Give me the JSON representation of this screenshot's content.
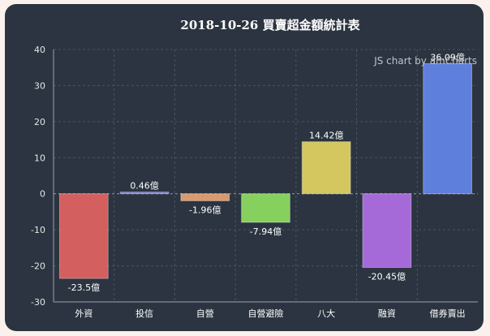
{
  "chart_data": {
    "type": "bar",
    "title": "2018-10-26 買賣超金額統計表",
    "categories": [
      "外資",
      "投信",
      "自營",
      "自營避險",
      "八大",
      "融資",
      "借券賣出"
    ],
    "values": [
      -23.5,
      0.46,
      -1.96,
      -7.94,
      14.42,
      -20.45,
      36.09
    ],
    "labels": [
      "-23.5億",
      "0.46億",
      "-1.96億",
      "-7.94億",
      "14.42億",
      "-20.45億",
      "36.09億"
    ],
    "colors": [
      "#d35f5f",
      "#7f82d8",
      "#d99a70",
      "#86d05e",
      "#d4c75f",
      "#a56ad8",
      "#5f7fdc"
    ],
    "ylim": [
      -30,
      40
    ],
    "yticks": [
      40,
      30,
      20,
      10,
      0,
      -10,
      -20,
      -30
    ],
    "xlabel": "",
    "ylabel": "",
    "grid": true
  },
  "credit": "JS chart by amCharts"
}
